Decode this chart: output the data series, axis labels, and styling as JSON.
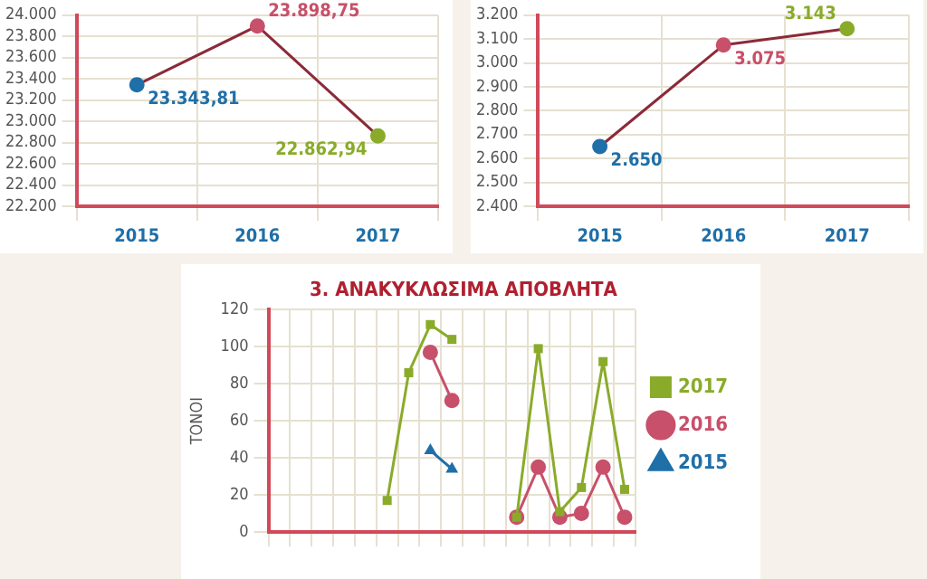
{
  "chart_data": [
    {
      "type": "line",
      "categories": [
        "2015",
        "2016",
        "2017"
      ],
      "series": [
        {
          "color": "#8b2a3a",
          "colors": [
            "#1f6fa8",
            "#c8506a",
            "#8aab2a"
          ],
          "values": [
            23343.81,
            23898.75,
            22862.94
          ],
          "value_labels": [
            "23.343,81",
            "23.898,75",
            "22.862,94"
          ]
        }
      ],
      "ylim": [
        22200,
        24000
      ],
      "yticks": [
        {
          "value": 22200,
          "label": "22.200"
        },
        {
          "value": 22400,
          "label": "22.400"
        },
        {
          "value": 22600,
          "label": "22.600"
        },
        {
          "value": 22800,
          "label": "22.800"
        },
        {
          "value": 23000,
          "label": "23.000"
        },
        {
          "value": 23200,
          "label": "23.200"
        },
        {
          "value": 23400,
          "label": "23.400"
        },
        {
          "value": 23600,
          "label": "23.600"
        },
        {
          "value": 23800,
          "label": "23.800"
        },
        {
          "value": 24000,
          "label": "24.000"
        }
      ],
      "grid": true,
      "legend": false,
      "marker": "circle"
    },
    {
      "type": "line",
      "categories": [
        "2015",
        "2016",
        "2017"
      ],
      "series": [
        {
          "color": "#8b2a3a",
          "colors": [
            "#1f6fa8",
            "#c8506a",
            "#8aab2a"
          ],
          "values": [
            2650,
            3075,
            3143
          ],
          "value_labels": [
            "2.650",
            "3.075",
            "3.143"
          ]
        }
      ],
      "ylim": [
        2400,
        3200
      ],
      "yticks": [
        {
          "value": 2400,
          "label": "2.400"
        },
        {
          "value": 2500,
          "label": "2.500"
        },
        {
          "value": 2600,
          "label": "2.600"
        },
        {
          "value": 2700,
          "label": "2.700"
        },
        {
          "value": 2800,
          "label": "2.800"
        },
        {
          "value": 2900,
          "label": "2.900"
        },
        {
          "value": 3000,
          "label": "3.000"
        },
        {
          "value": 3100,
          "label": "3.100"
        },
        {
          "value": 3200,
          "label": "3.200"
        }
      ],
      "grid": true,
      "legend": false,
      "marker": "circle"
    },
    {
      "type": "line",
      "title": "3. ΑΝΑΚΥΚΛΩΣΙΜΑ ΑΠΟΒΛΗΤΑ",
      "ylabel": "ΤΟΝΟΙ",
      "categories": [
        null,
        null,
        null,
        null,
        null,
        null,
        null,
        null,
        null,
        null,
        null,
        null,
        null,
        null,
        null,
        null,
        null
      ],
      "series": [
        {
          "name": "2017",
          "color": "#8aab2a",
          "marker": "square",
          "values": [
            null,
            null,
            null,
            null,
            null,
            17,
            86,
            112,
            104,
            null,
            null,
            8,
            99,
            11,
            24,
            92,
            23
          ]
        },
        {
          "name": "2016",
          "color": "#c8506a",
          "marker": "circle",
          "values": [
            null,
            null,
            null,
            null,
            null,
            null,
            null,
            97,
            71,
            null,
            null,
            8,
            35,
            8,
            10,
            35,
            8
          ]
        },
        {
          "name": "2015",
          "color": "#1f6fa8",
          "marker": "triangle",
          "values": [
            null,
            null,
            null,
            null,
            null,
            null,
            null,
            44,
            34,
            null,
            null,
            null,
            null,
            null,
            null,
            null,
            null
          ]
        }
      ],
      "ylim": [
        0,
        120
      ],
      "yticks": [
        0,
        20,
        40,
        60,
        80,
        100,
        120
      ],
      "grid": true,
      "legend": "right"
    }
  ]
}
